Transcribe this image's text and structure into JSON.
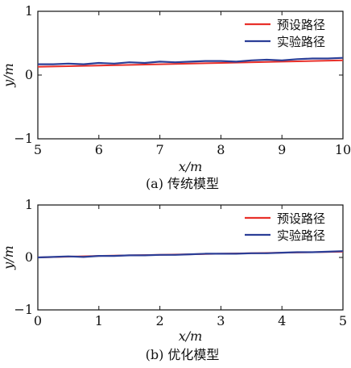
{
  "charts": [
    {
      "caption": "(a) 传统模型",
      "chart_data": {
        "type": "line",
        "xlabel": "x/m",
        "ylabel": "y/m",
        "xlim": [
          5,
          10
        ],
        "ylim": [
          -1,
          1
        ],
        "xticks": [
          5,
          6,
          7,
          8,
          9,
          10
        ],
        "yticks": [
          -1,
          0,
          1
        ],
        "grid": false,
        "legend_position": "top-right",
        "series": [
          {
            "name": "预设路径",
            "color": "#e8302a",
            "x": [
              5,
              6,
              7,
              8,
              9,
              10
            ],
            "y": [
              0.13,
              0.15,
              0.17,
              0.19,
              0.21,
              0.23
            ]
          },
          {
            "name": "实验路径",
            "color": "#2b3e97",
            "x": [
              5,
              5.25,
              5.5,
              5.75,
              6,
              6.25,
              6.5,
              6.75,
              7,
              7.25,
              7.5,
              7.75,
              8,
              8.25,
              8.5,
              8.75,
              9,
              9.25,
              9.5,
              9.75,
              10
            ],
            "y": [
              0.17,
              0.17,
              0.18,
              0.17,
              0.19,
              0.18,
              0.2,
              0.19,
              0.21,
              0.2,
              0.21,
              0.22,
              0.22,
              0.21,
              0.23,
              0.24,
              0.23,
              0.25,
              0.26,
              0.26,
              0.27
            ]
          }
        ]
      }
    },
    {
      "caption": "(b) 优化模型",
      "chart_data": {
        "type": "line",
        "xlabel": "x/m",
        "ylabel": "y/m",
        "xlim": [
          0,
          5
        ],
        "ylim": [
          -1,
          1
        ],
        "xticks": [
          0,
          1,
          2,
          3,
          4,
          5
        ],
        "yticks": [
          -1,
          0,
          1
        ],
        "grid": false,
        "legend_position": "top-right",
        "series": [
          {
            "name": "预设路径",
            "color": "#e8302a",
            "x": [
              0,
              1,
              2,
              3,
              4,
              5
            ],
            "y": [
              0.0,
              0.03,
              0.05,
              0.07,
              0.09,
              0.11
            ]
          },
          {
            "name": "实验路径",
            "color": "#2b3e97",
            "x": [
              0,
              0.25,
              0.5,
              0.75,
              1,
              1.25,
              1.5,
              1.75,
              2,
              2.25,
              2.5,
              2.75,
              3,
              3.25,
              3.5,
              3.75,
              4,
              4.25,
              4.5,
              4.75,
              5
            ],
            "y": [
              0.0,
              0.01,
              0.02,
              0.01,
              0.03,
              0.03,
              0.04,
              0.04,
              0.05,
              0.05,
              0.06,
              0.07,
              0.07,
              0.07,
              0.08,
              0.08,
              0.09,
              0.1,
              0.1,
              0.11,
              0.12
            ]
          }
        ]
      }
    }
  ]
}
